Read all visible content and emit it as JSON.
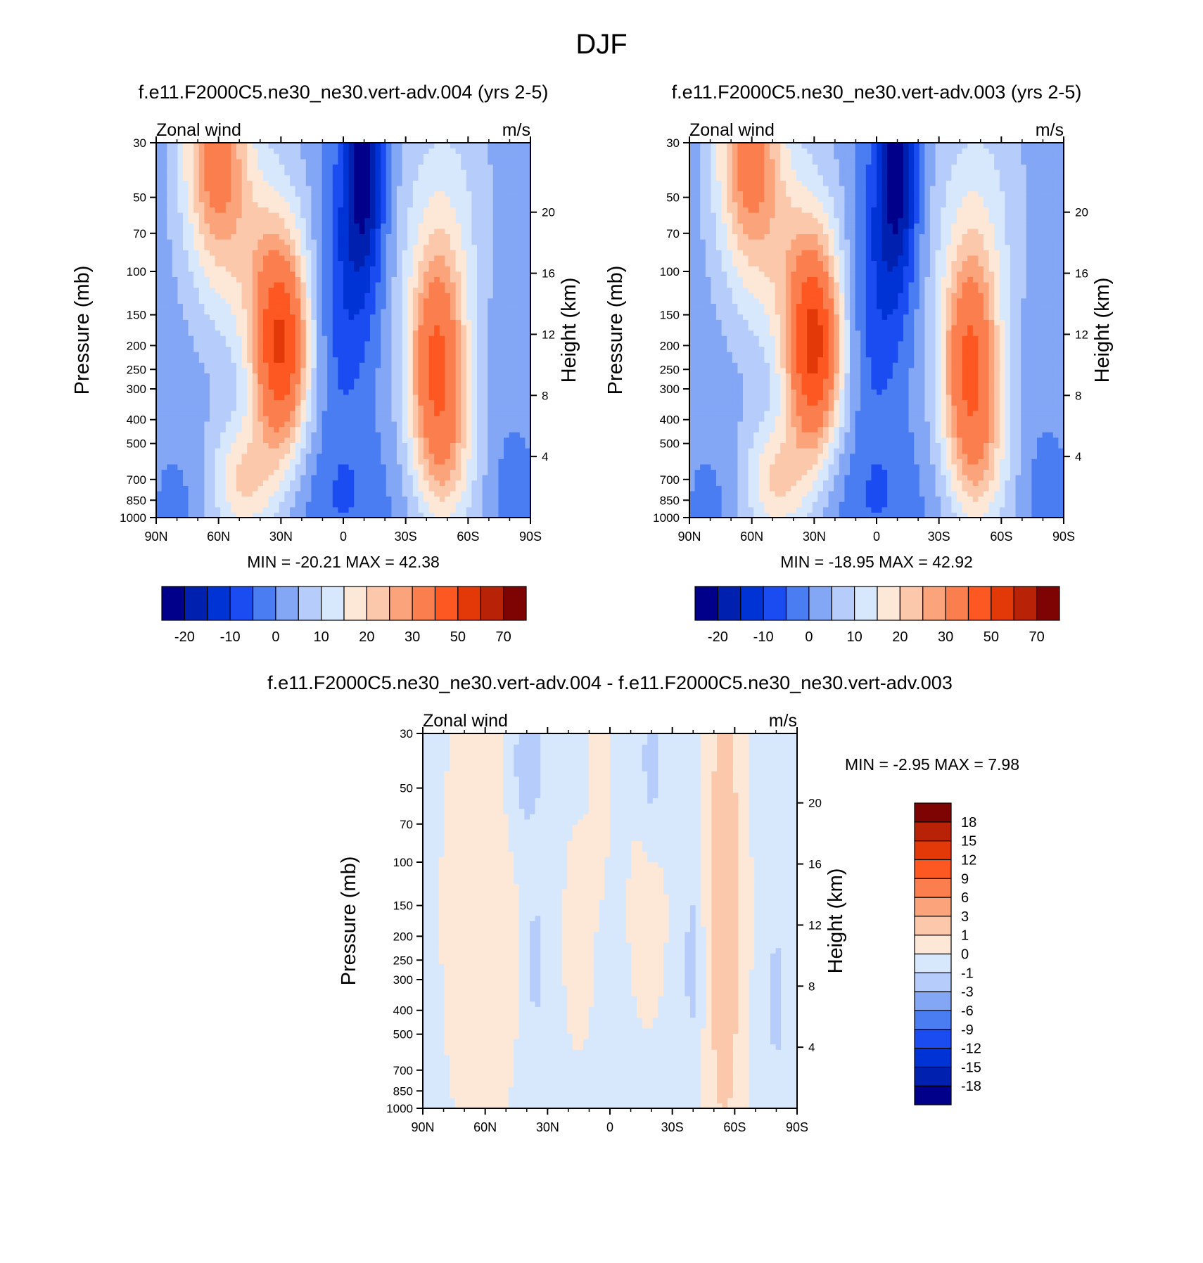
{
  "page_title": "DJF",
  "chart_data": [
    {
      "type": "heatmap",
      "id": "panel-004",
      "title": "f.e11.F2000C5.ne30_ne30.vert-adv.004 (yrs 2-5)",
      "variable": "Zonal wind",
      "units": "m/s",
      "ylabel": "Pressure (mb)",
      "ylabel_right": "Height (km)",
      "xlim": [
        90,
        -90
      ],
      "x_ticks": [
        90,
        60,
        30,
        0,
        -30,
        -60,
        -90
      ],
      "x_tick_labels": [
        "90N",
        "60N",
        "30N",
        "0",
        "30S",
        "60S",
        "90S"
      ],
      "y_scale": "log",
      "ylim": [
        1000,
        30
      ],
      "y_ticks": [
        30,
        50,
        70,
        100,
        150,
        200,
        250,
        300,
        400,
        500,
        700,
        850,
        1000
      ],
      "y_tick_labels": [
        "30",
        "50",
        "70",
        "100",
        "150",
        "200",
        "250",
        "300",
        "400",
        "500",
        "700",
        "850",
        "1000"
      ],
      "height_ticks": [
        4,
        8,
        12,
        16,
        20
      ],
      "height_tick_labels": [
        "4",
        "8",
        "12",
        "16",
        "20"
      ],
      "min": -20.21,
      "max": 42.38,
      "stats_text": "MIN = -20.21  MAX =  42.38",
      "colorbar": {
        "orientation": "horizontal",
        "colors": [
          "#00008a",
          "#0020b0",
          "#0033d6",
          "#1a4cf2",
          "#4b7df2",
          "#83a6f5",
          "#b6ccfa",
          "#d7e8fd",
          "#fde8d8",
          "#fcc8ab",
          "#fba47b",
          "#fb7f4e",
          "#fd5722",
          "#e33808",
          "#b82307",
          "#7e0404"
        ],
        "labels": [
          "-20",
          "-10",
          "0",
          "10",
          "20",
          "30",
          "50",
          "70"
        ]
      }
    },
    {
      "type": "heatmap",
      "id": "panel-003",
      "title": "f.e11.F2000C5.ne30_ne30.vert-adv.003 (yrs 2-5)",
      "variable": "Zonal wind",
      "units": "m/s",
      "ylabel": "Pressure (mb)",
      "ylabel_right": "Height (km)",
      "xlim": [
        90,
        -90
      ],
      "x_ticks": [
        90,
        60,
        30,
        0,
        -30,
        -60,
        -90
      ],
      "x_tick_labels": [
        "90N",
        "60N",
        "30N",
        "0",
        "30S",
        "60S",
        "90S"
      ],
      "y_scale": "log",
      "ylim": [
        1000,
        30
      ],
      "y_ticks": [
        30,
        50,
        70,
        100,
        150,
        200,
        250,
        300,
        400,
        500,
        700,
        850,
        1000
      ],
      "y_tick_labels": [
        "30",
        "50",
        "70",
        "100",
        "150",
        "200",
        "250",
        "300",
        "400",
        "500",
        "700",
        "850",
        "1000"
      ],
      "height_ticks": [
        4,
        8,
        12,
        16,
        20
      ],
      "height_tick_labels": [
        "4",
        "8",
        "12",
        "16",
        "20"
      ],
      "min": -18.95,
      "max": 42.92,
      "stats_text": "MIN = -18.95  MAX =  42.92",
      "colorbar": {
        "orientation": "horizontal",
        "colors": [
          "#00008a",
          "#0020b0",
          "#0033d6",
          "#1a4cf2",
          "#4b7df2",
          "#83a6f5",
          "#b6ccfa",
          "#d7e8fd",
          "#fde8d8",
          "#fcc8ab",
          "#fba47b",
          "#fb7f4e",
          "#fd5722",
          "#e33808",
          "#b82307",
          "#7e0404"
        ],
        "labels": [
          "-20",
          "-10",
          "0",
          "10",
          "20",
          "30",
          "50",
          "70"
        ]
      }
    },
    {
      "type": "heatmap",
      "id": "panel-diff",
      "title": "f.e11.F2000C5.ne30_ne30.vert-adv.004 - f.e11.F2000C5.ne30_ne30.vert-adv.003",
      "variable": "Zonal wind",
      "units": "m/s",
      "ylabel": "Pressure (mb)",
      "ylabel_right": "Height (km)",
      "xlim": [
        90,
        -90
      ],
      "x_ticks": [
        90,
        60,
        30,
        0,
        -30,
        -60,
        -90
      ],
      "x_tick_labels": [
        "90N",
        "60N",
        "30N",
        "0",
        "30S",
        "60S",
        "90S"
      ],
      "y_scale": "log",
      "ylim": [
        1000,
        30
      ],
      "y_ticks": [
        30,
        50,
        70,
        100,
        150,
        200,
        250,
        300,
        400,
        500,
        700,
        850,
        1000
      ],
      "y_tick_labels": [
        "30",
        "50",
        "70",
        "100",
        "150",
        "200",
        "250",
        "300",
        "400",
        "500",
        "700",
        "850",
        "1000"
      ],
      "height_ticks": [
        4,
        8,
        12,
        16,
        20
      ],
      "height_tick_labels": [
        "4",
        "8",
        "12",
        "16",
        "20"
      ],
      "min": -2.95,
      "max": 7.98,
      "stats_text": "MIN =  -2.95  MAX =    7.98",
      "colorbar": {
        "orientation": "vertical",
        "colors": [
          "#00008a",
          "#0020b0",
          "#0033d6",
          "#1a4cf2",
          "#4b7df2",
          "#83a6f5",
          "#b6ccfa",
          "#d7e8fd",
          "#fde8d8",
          "#fcc8ab",
          "#fba47b",
          "#fb7f4e",
          "#fd5722",
          "#e33808",
          "#b82307",
          "#7e0404"
        ],
        "labels": [
          "-18",
          "-15",
          "-12",
          "-9",
          "-6",
          "-3",
          "-1",
          "0",
          "1",
          "3",
          "6",
          "9",
          "12",
          "15",
          "18"
        ]
      }
    }
  ]
}
